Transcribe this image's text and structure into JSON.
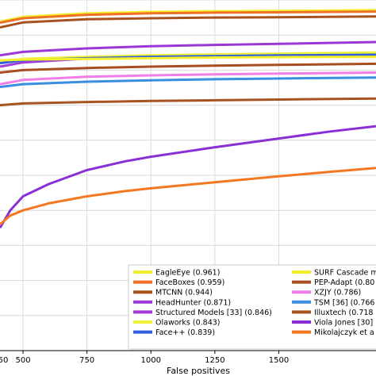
{
  "chart_data": {
    "type": "line",
    "xlabel": "False positives",
    "ylabel": "",
    "xlim": [
      410,
      1880
    ],
    "ylim": [
      0.0,
      1.0
    ],
    "x_ticks": [
      500,
      750,
      1000,
      1250,
      1500
    ],
    "x_tick_labels": [
      "500",
      "750",
      "1000",
      "1250",
      "1500"
    ],
    "first_tick_label": "50",
    "grid": true,
    "legend_position": "lower-right",
    "series": [
      {
        "name": "EagleEye (0.961)",
        "color": "#f2ee2e",
        "x": [
          410,
          500,
          750,
          1000,
          1250,
          1500,
          1880
        ],
        "y": [
          0.938,
          0.952,
          0.962,
          0.966,
          0.968,
          0.969,
          0.971
        ]
      },
      {
        "name": "FaceBoxes (0.959)",
        "color": "#f07126",
        "x": [
          410,
          500,
          750,
          1000,
          1250,
          1500,
          1880
        ],
        "y": [
          0.935,
          0.948,
          0.958,
          0.962,
          0.964,
          0.965,
          0.967
        ]
      },
      {
        "name": "MTCNN (0.944)",
        "color": "#a6511e",
        "x": [
          410,
          500,
          750,
          1000,
          1250,
          1500,
          1880
        ],
        "y": [
          0.922,
          0.936,
          0.945,
          0.948,
          0.95,
          0.951,
          0.953
        ]
      },
      {
        "name": "HeadHunter (0.871)",
        "color": "#9a38d6",
        "x": [
          410,
          500,
          750,
          1000,
          1250,
          1500,
          1880
        ],
        "y": [
          0.842,
          0.852,
          0.862,
          0.868,
          0.872,
          0.875,
          0.88
        ]
      },
      {
        "name": "Structured Models [33] (0.846)",
        "color": "#a43bd9",
        "x": [
          410,
          500,
          750,
          1000,
          1250,
          1500,
          1880
        ],
        "y": [
          0.81,
          0.822,
          0.833,
          0.838,
          0.842,
          0.845,
          0.849
        ]
      },
      {
        "name": "Olaworks (0.843)",
        "color": "#eef03a",
        "x": [
          410,
          500,
          750,
          1000,
          1250,
          1500,
          1880
        ],
        "y": [
          0.825,
          0.832,
          0.838,
          0.842,
          0.845,
          0.847,
          0.85
        ]
      },
      {
        "name": "Face++ (0.839)",
        "color": "#2f5fe0",
        "x": [
          410,
          500,
          750,
          1000,
          1250,
          1500,
          1880
        ],
        "y": [
          0.82,
          0.828,
          0.834,
          0.838,
          0.84,
          0.842,
          0.844
        ]
      },
      {
        "name": "SURF Cascade m",
        "color": "#f5ef2a",
        "x": [
          410,
          500,
          750,
          1000,
          1250,
          1500,
          1880
        ],
        "y": [
          0.828,
          0.83,
          0.832,
          0.834,
          0.836,
          0.837,
          0.838
        ]
      },
      {
        "name": "PEP-Adapt (0.80",
        "color": "#a84d1f",
        "x": [
          410,
          500,
          750,
          1000,
          1250,
          1500,
          1880
        ],
        "y": [
          0.793,
          0.8,
          0.806,
          0.81,
          0.813,
          0.815,
          0.818
        ]
      },
      {
        "name": "XZJY (0.786)",
        "color": "#f07ee8",
        "x": [
          410,
          500,
          750,
          1000,
          1250,
          1500,
          1880
        ],
        "y": [
          0.76,
          0.772,
          0.781,
          0.785,
          0.788,
          0.79,
          0.793
        ]
      },
      {
        "name": "TSM [36] (0.766",
        "color": "#3a8ee0",
        "x": [
          410,
          500,
          750,
          1000,
          1250,
          1500,
          1880
        ],
        "y": [
          0.752,
          0.76,
          0.767,
          0.771,
          0.774,
          0.776,
          0.779
        ]
      },
      {
        "name": "Illuxtech (0.718",
        "color": "#a8521f",
        "x": [
          410,
          500,
          750,
          1000,
          1250,
          1500,
          1880
        ],
        "y": [
          0.7,
          0.705,
          0.709,
          0.712,
          0.714,
          0.716,
          0.719
        ]
      },
      {
        "name": "Viola Jones [30]",
        "color": "#8a2fd6",
        "x": [
          410,
          450,
          500,
          600,
          750,
          900,
          1000,
          1250,
          1500,
          1700,
          1880
        ],
        "y": [
          0.35,
          0.4,
          0.44,
          0.475,
          0.515,
          0.54,
          0.553,
          0.58,
          0.605,
          0.625,
          0.64
        ]
      },
      {
        "name": "Mikolajczyk et a",
        "color": "#f47822",
        "x": [
          410,
          450,
          500,
          600,
          750,
          900,
          1000,
          1250,
          1500,
          1700,
          1880
        ],
        "y": [
          0.36,
          0.385,
          0.4,
          0.42,
          0.44,
          0.455,
          0.463,
          0.48,
          0.497,
          0.51,
          0.521
        ]
      }
    ]
  }
}
